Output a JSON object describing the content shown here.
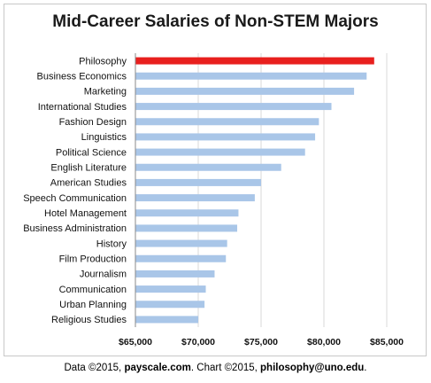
{
  "chart_data": {
    "type": "bar",
    "orientation": "horizontal",
    "title": "Mid-Career Salaries of Non-STEM Majors",
    "categories": [
      "Philosophy",
      "Business Economics",
      "Marketing",
      "International Studies",
      "Fashion Design",
      "Linguistics",
      "Political Science",
      "English Literature",
      "American Studies",
      "Speech Communication",
      "Hotel Management",
      "Business Administration",
      "History",
      "Film Production",
      "Journalism",
      "Communication",
      "Urban Planning",
      "Religious Studies"
    ],
    "values": [
      84000,
      83400,
      82400,
      80600,
      79600,
      79300,
      78500,
      76600,
      75000,
      74500,
      73200,
      73100,
      72300,
      72200,
      71300,
      70600,
      70500,
      70000
    ],
    "xlim": [
      65000,
      85000
    ],
    "ticks": [
      65000,
      70000,
      75000,
      80000,
      85000
    ],
    "tick_labels": [
      "$65,000",
      "$70,000",
      "$75,000",
      "$80,000",
      "$85,000"
    ],
    "grid": true,
    "legend": "none",
    "colors": {
      "highlight": "#e8201e",
      "bar": "#a9c6e8",
      "grid": "#d9d9d9"
    }
  },
  "credit": {
    "prefix": "Data ©2015, ",
    "data_source": "payscale.com",
    "middle": ". Chart ©2015, ",
    "chart_source": "philosophy@uno.edu",
    "suffix": "."
  }
}
